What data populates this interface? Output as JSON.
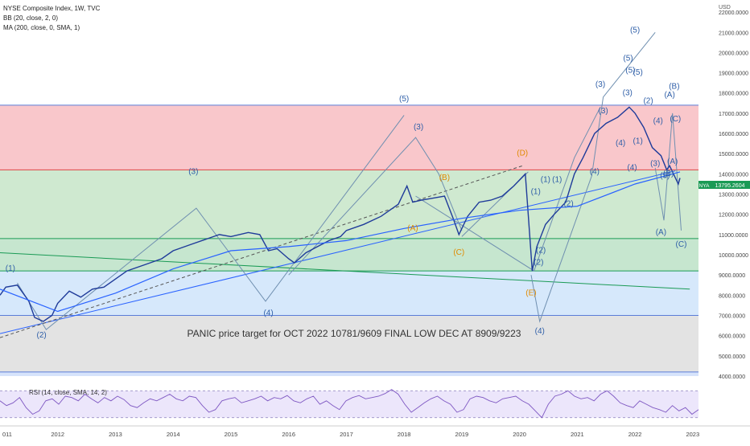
{
  "header": {
    "symbol": "NYSE Composite Index, 1W, TVC",
    "bb": "BB (20, close, 2, 0)",
    "ma": "MA (200, close, 0, SMA, 1)",
    "rsi": "RSI (14, close, SMA, 14, 2)"
  },
  "annotation": {
    "panic_text": "PANIC price target for OCT 2022  10781/9609 FINAL LOW  DEC AT 8909/9223"
  },
  "chart_data": {
    "type": "line",
    "currency": "USD",
    "ylim": [
      3800,
      22600
    ],
    "xlim": [
      2011.0,
      2023.1
    ],
    "y_ticks": [
      "4000.0000",
      "5000.0000",
      "6000.0000",
      "7000.0000",
      "8000.0000",
      "9000.0000",
      "10000.0000",
      "11000.0000",
      "12000.0000",
      "13000.0000",
      "14000.0000",
      "15000.0000",
      "16000.0000",
      "17000.0000",
      "18000.0000",
      "19000.0000",
      "20000.0000",
      "21000.0000",
      "22000.0000"
    ],
    "x_ticks": [
      "011",
      "2012",
      "2013",
      "2014",
      "2015",
      "2016",
      "2017",
      "2018",
      "2019",
      "2020",
      "2021",
      "2022",
      "2023"
    ],
    "last_price": {
      "symbol": "NYA",
      "value": 13795.2604,
      "label": "13795.2604"
    },
    "zones": [
      {
        "from": 14200,
        "to": 17400,
        "color": "#f9c7cb"
      },
      {
        "from": 10800,
        "to": 14200,
        "color": "#cfe9d0"
      },
      {
        "from": 9200,
        "to": 10800,
        "color": "#c6e6cf"
      },
      {
        "from": 7000,
        "to": 9200,
        "color": "#d6e8fb"
      },
      {
        "from": 4200,
        "to": 7000,
        "color": "#e3e3e3"
      },
      {
        "from": 4000,
        "to": 4200,
        "color": "#d6e3fb"
      }
    ],
    "levels": [
      {
        "value": 17400,
        "color": "#5b7dd8"
      },
      {
        "value": 14200,
        "color": "#e04444"
      },
      {
        "value": 10800,
        "color": "#1a9a55"
      },
      {
        "value": 9200,
        "color": "#1a9a55"
      },
      {
        "value": 7000,
        "color": "#5b7dd8"
      },
      {
        "value": 4200,
        "color": "#5b7dd8"
      }
    ],
    "series": [
      {
        "color": "#1f3b9a",
        "points": [
          [
            2011.0,
            8000
          ],
          [
            2011.1,
            8400
          ],
          [
            2011.3,
            8500
          ],
          [
            2011.5,
            7700
          ],
          [
            2011.6,
            6900
          ],
          [
            2011.75,
            6700
          ],
          [
            2011.9,
            7000
          ],
          [
            2012.0,
            7600
          ],
          [
            2012.2,
            8200
          ],
          [
            2012.4,
            7900
          ],
          [
            2012.6,
            8300
          ],
          [
            2012.8,
            8400
          ],
          [
            2013.0,
            8800
          ],
          [
            2013.2,
            9200
          ],
          [
            2013.5,
            9500
          ],
          [
            2013.8,
            9800
          ],
          [
            2014.0,
            10200
          ],
          [
            2014.3,
            10500
          ],
          [
            2014.6,
            10800
          ],
          [
            2014.8,
            11000
          ],
          [
            2015.0,
            10900
          ],
          [
            2015.3,
            11100
          ],
          [
            2015.5,
            11000
          ],
          [
            2015.65,
            10200
          ],
          [
            2015.8,
            10300
          ],
          [
            2016.0,
            9800
          ],
          [
            2016.1,
            9600
          ],
          [
            2016.3,
            10100
          ],
          [
            2016.5,
            10400
          ],
          [
            2016.7,
            10700
          ],
          [
            2016.9,
            10900
          ],
          [
            2017.0,
            11200
          ],
          [
            2017.3,
            11500
          ],
          [
            2017.6,
            11900
          ],
          [
            2017.9,
            12500
          ],
          [
            2018.05,
            13400
          ],
          [
            2018.15,
            12600
          ],
          [
            2018.3,
            12700
          ],
          [
            2018.5,
            12800
          ],
          [
            2018.7,
            12900
          ],
          [
            2018.85,
            11800
          ],
          [
            2018.95,
            11000
          ],
          [
            2019.1,
            11900
          ],
          [
            2019.3,
            12600
          ],
          [
            2019.5,
            12700
          ],
          [
            2019.7,
            12900
          ],
          [
            2019.9,
            13400
          ],
          [
            2020.1,
            14000
          ],
          [
            2020.15,
            12000
          ],
          [
            2020.22,
            9200
          ],
          [
            2020.3,
            10400
          ],
          [
            2020.45,
            11500
          ],
          [
            2020.6,
            12000
          ],
          [
            2020.8,
            12600
          ],
          [
            2020.95,
            14000
          ],
          [
            2021.1,
            14800
          ],
          [
            2021.3,
            16000
          ],
          [
            2021.5,
            16500
          ],
          [
            2021.7,
            16800
          ],
          [
            2021.9,
            17300
          ],
          [
            2022.0,
            17000
          ],
          [
            2022.15,
            16300
          ],
          [
            2022.3,
            15300
          ],
          [
            2022.45,
            14900
          ],
          [
            2022.55,
            14200
          ],
          [
            2022.6,
            14400
          ],
          [
            2022.75,
            13500
          ],
          [
            2022.78,
            13795
          ]
        ]
      },
      {
        "color": "#2962ff",
        "points": [
          [
            2011.0,
            8300
          ],
          [
            2012.0,
            7200
          ],
          [
            2013.0,
            8100
          ],
          [
            2014.0,
            9300
          ],
          [
            2015.0,
            10200
          ],
          [
            2016.0,
            10400
          ],
          [
            2017.0,
            10700
          ],
          [
            2018.0,
            11300
          ],
          [
            2019.0,
            11800
          ],
          [
            2020.0,
            12200
          ],
          [
            2021.0,
            12400
          ],
          [
            2022.0,
            13500
          ],
          [
            2022.78,
            14100
          ]
        ]
      }
    ],
    "trendlines": [
      {
        "color": "#1a9a55",
        "points": [
          [
            2011.0,
            10100
          ],
          [
            2022.95,
            8300
          ]
        ]
      },
      {
        "color": "#2962ff",
        "points": [
          [
            2011.0,
            6100
          ],
          [
            2022.7,
            14150
          ]
        ]
      },
      {
        "color": "#555555",
        "dashed": true,
        "points": [
          [
            2011.0,
            5900
          ],
          [
            2020.05,
            14400
          ]
        ]
      },
      {
        "color": "#6f8fb0",
        "points": [
          [
            2011.3,
            8600
          ],
          [
            2011.8,
            6300
          ],
          [
            2014.4,
            12300
          ],
          [
            2015.6,
            7700
          ],
          [
            2018.0,
            16900
          ]
        ]
      },
      {
        "color": "#6f8fb0",
        "points": [
          [
            2016.0,
            9000
          ],
          [
            2018.2,
            15800
          ],
          [
            2018.6,
            14000
          ],
          [
            2019.0,
            11200
          ]
        ]
      },
      {
        "color": "#6f8fb0",
        "points": [
          [
            2020.2,
            9000
          ],
          [
            2020.35,
            6700
          ],
          [
            2021.25,
            13900
          ],
          [
            2021.45,
            17800
          ],
          [
            2022.35,
            21000
          ]
        ]
      },
      {
        "color": "#6f8fb0",
        "points": [
          [
            2018.2,
            12900
          ],
          [
            2020.25,
            9200
          ],
          [
            2020.95,
            14800
          ],
          [
            2021.4,
            17300
          ]
        ]
      },
      {
        "color": "#6f8fb0",
        "points": [
          [
            2022.35,
            14300
          ],
          [
            2022.5,
            11700
          ],
          [
            2022.65,
            17000
          ],
          [
            2022.8,
            11200
          ]
        ]
      },
      {
        "color": "#6f8fb0",
        "points": [
          [
            2019.0,
            10900
          ],
          [
            2020.15,
            14100
          ]
        ]
      }
    ],
    "wave_labels": [
      {
        "text": "(1)",
        "x": 2011.18,
        "y": 9200,
        "color": "#2f5fa8"
      },
      {
        "text": "(2)",
        "x": 2011.72,
        "y": 5900,
        "color": "#2f5fa8"
      },
      {
        "text": "(3)",
        "x": 2014.35,
        "y": 14000,
        "color": "#2f5fa8"
      },
      {
        "text": "(4)",
        "x": 2015.65,
        "y": 7000,
        "color": "#2f5fa8"
      },
      {
        "text": "(5)",
        "x": 2018.0,
        "y": 17600,
        "color": "#2f5fa8"
      },
      {
        "text": "(3)",
        "x": 2018.25,
        "y": 16200,
        "color": "#2f5fa8"
      },
      {
        "text": "(B)",
        "x": 2018.7,
        "y": 13700,
        "color": "#e08a00"
      },
      {
        "text": "(A)",
        "x": 2018.15,
        "y": 11200,
        "color": "#e08a00"
      },
      {
        "text": "(C)",
        "x": 2018.95,
        "y": 10000,
        "color": "#e08a00"
      },
      {
        "text": "(D)",
        "x": 2020.05,
        "y": 14900,
        "color": "#e08a00"
      },
      {
        "text": "(E)",
        "x": 2020.2,
        "y": 8000,
        "color": "#e08a00"
      },
      {
        "text": "(4)",
        "x": 2020.35,
        "y": 6100,
        "color": "#2f5fa8"
      },
      {
        "text": "(1)",
        "x": 2020.28,
        "y": 13000,
        "color": "#2f5fa8"
      },
      {
        "text": "(1)",
        "x": 2020.45,
        "y": 13600,
        "color": "#2f5fa8"
      },
      {
        "text": "(1)",
        "x": 2020.65,
        "y": 13600,
        "color": "#2f5fa8"
      },
      {
        "text": "(2)",
        "x": 2020.37,
        "y": 10100,
        "color": "#2f5fa8"
      },
      {
        "text": "(2)",
        "x": 2020.33,
        "y": 9500,
        "color": "#2f5fa8"
      },
      {
        "text": "(2)",
        "x": 2020.85,
        "y": 12400,
        "color": "#2f5fa8"
      },
      {
        "text": "(3)",
        "x": 2021.4,
        "y": 18300,
        "color": "#2f5fa8"
      },
      {
        "text": "(3)",
        "x": 2021.45,
        "y": 17000,
        "color": "#2f5fa8"
      },
      {
        "text": "(4)",
        "x": 2021.3,
        "y": 14000,
        "color": "#2f5fa8"
      },
      {
        "text": "(4)",
        "x": 2021.75,
        "y": 15400,
        "color": "#2f5fa8"
      },
      {
        "text": "(4)",
        "x": 2021.95,
        "y": 14200,
        "color": "#2f5fa8"
      },
      {
        "text": "(5)",
        "x": 2022.0,
        "y": 21000,
        "color": "#2f5fa8"
      },
      {
        "text": "(5)",
        "x": 2021.88,
        "y": 19600,
        "color": "#2f5fa8"
      },
      {
        "text": "(5)",
        "x": 2021.92,
        "y": 19000,
        "color": "#2f5fa8"
      },
      {
        "text": "(5)",
        "x": 2022.05,
        "y": 18900,
        "color": "#2f5fa8"
      },
      {
        "text": "(3)",
        "x": 2021.87,
        "y": 17900,
        "color": "#2f5fa8"
      },
      {
        "text": "(2)",
        "x": 2022.23,
        "y": 17500,
        "color": "#2f5fa8"
      },
      {
        "text": "(1)",
        "x": 2022.05,
        "y": 15500,
        "color": "#2f5fa8"
      },
      {
        "text": "(4)",
        "x": 2022.4,
        "y": 16500,
        "color": "#2f5fa8"
      },
      {
        "text": "(A)",
        "x": 2022.6,
        "y": 17800,
        "color": "#2f5fa8"
      },
      {
        "text": "(B)",
        "x": 2022.68,
        "y": 18200,
        "color": "#2f5fa8"
      },
      {
        "text": "(C)",
        "x": 2022.7,
        "y": 16600,
        "color": "#2f5fa8"
      },
      {
        "text": "(3)",
        "x": 2022.35,
        "y": 14400,
        "color": "#2f5fa8"
      },
      {
        "text": "(5)",
        "x": 2022.52,
        "y": 13800,
        "color": "#2f5fa8"
      },
      {
        "text": "(B)",
        "x": 2022.58,
        "y": 13900,
        "color": "#2f5fa8"
      },
      {
        "text": "(A)",
        "x": 2022.65,
        "y": 14500,
        "color": "#2f5fa8"
      },
      {
        "text": "(A)",
        "x": 2022.45,
        "y": 11000,
        "color": "#2f5fa8"
      },
      {
        "text": "(C)",
        "x": 2022.8,
        "y": 10400,
        "color": "#2f5fa8"
      }
    ],
    "rsi": {
      "levels": [
        "60.00",
        "40.00"
      ],
      "band": [
        30,
        70
      ],
      "values": [
        55,
        48,
        52,
        60,
        45,
        35,
        40,
        55,
        58,
        50,
        62,
        60,
        55,
        65,
        58,
        52,
        60,
        55,
        62,
        57,
        48,
        45,
        52,
        58,
        55,
        60,
        65,
        58,
        55,
        62,
        60,
        48,
        38,
        42,
        55,
        58,
        60,
        52,
        55,
        58,
        62,
        55,
        60,
        58,
        63,
        55,
        52,
        58,
        62,
        50,
        55,
        48,
        42,
        55,
        60,
        63,
        58,
        60,
        62,
        66,
        72,
        65,
        50,
        38,
        45,
        52,
        58,
        62,
        55,
        50,
        38,
        42,
        58,
        62,
        60,
        55,
        52,
        58,
        60,
        62,
        55,
        50,
        40,
        30,
        50,
        62,
        65,
        70,
        62,
        58,
        60,
        55,
        65,
        70,
        62,
        52,
        48,
        45,
        55,
        50,
        45,
        42,
        38,
        48,
        40,
        45,
        35,
        42
      ]
    }
  }
}
